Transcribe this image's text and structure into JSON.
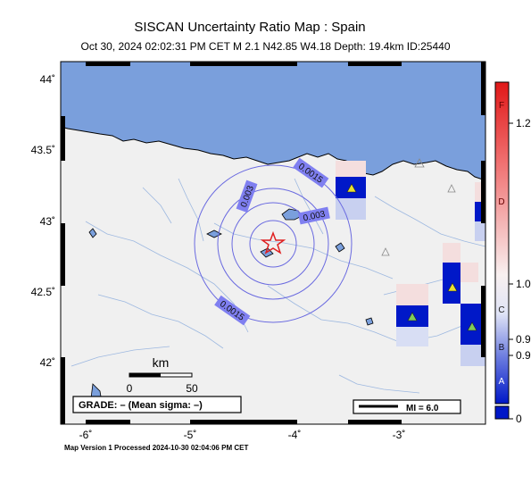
{
  "title": "SISCAN Uncertainty Ratio Map : Spain",
  "subtitle": "Oct 30, 2024 02:02:31 PM CET   M 2.1   N42.85 W4.18   Depth: 19.4km   ID:25440",
  "footer": "Map Version 1 Processed 2024-10-30 02:04:06 PM CET",
  "lat_ticks": [
    "44˚",
    "43.5˚",
    "43˚",
    "42.5˚",
    "42˚"
  ],
  "lon_ticks": [
    "-6˚",
    "-5˚",
    "-4˚",
    "-3˚"
  ],
  "contours": [
    "0.0015",
    "0.003",
    "0.003",
    "0.0015"
  ],
  "scale": {
    "unit": "km",
    "start": "0",
    "end": "50"
  },
  "grade_label": "GRADE: – (Mean sigma: –)",
  "mi_label": "MI = 6.0",
  "colorbar": {
    "letters": [
      "F",
      "D",
      "C",
      "B",
      "A"
    ],
    "values": [
      "1.2",
      "1.0",
      "0.9",
      "0.9",
      "0"
    ]
  },
  "colors": {
    "ocean": "#7a9fdc",
    "land": "#f0f0f0",
    "station": "#7fcc5a",
    "cell": "#0018c8",
    "epicenter": "#e02020"
  }
}
